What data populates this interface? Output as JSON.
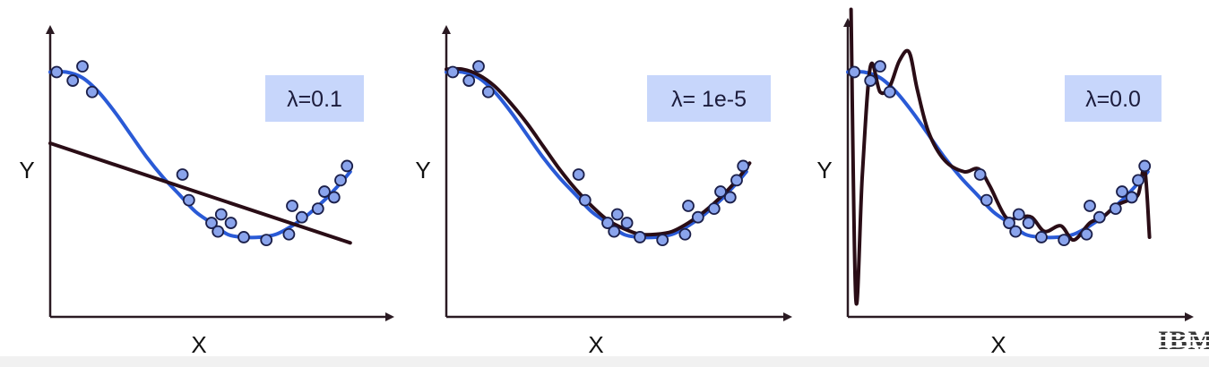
{
  "logo": {
    "text": "IBM"
  },
  "colors": {
    "axis": "#2a1a22",
    "true_curve": "#2a5ad6",
    "fit_curve": "#2a0d16",
    "point_fill": "#8aa4ec",
    "point_stroke": "#1b1f4a",
    "label_box": "#c7d6fb",
    "label_text": "#1c1c3c"
  },
  "chart_data": [
    {
      "type": "scatter",
      "title": "",
      "annotation": "λ=0.1",
      "xlabel": "X",
      "ylabel": "Y",
      "xlim": [
        0,
        10
      ],
      "ylim": [
        0,
        10
      ],
      "series": [
        {
          "kind": "points",
          "points": [
            [
              0.2,
              8.6
            ],
            [
              0.7,
              8.3
            ],
            [
              1.0,
              8.8
            ],
            [
              1.3,
              7.9
            ],
            [
              4.1,
              5.0
            ],
            [
              4.3,
              4.1
            ],
            [
              5.0,
              3.3
            ],
            [
              5.2,
              3.0
            ],
            [
              5.3,
              3.6
            ],
            [
              5.6,
              3.3
            ],
            [
              6.0,
              2.8
            ],
            [
              6.7,
              2.7
            ],
            [
              7.4,
              2.9
            ],
            [
              7.5,
              3.9
            ],
            [
              7.8,
              3.5
            ],
            [
              8.3,
              3.8
            ],
            [
              8.5,
              4.4
            ],
            [
              8.8,
              4.2
            ],
            [
              9.0,
              4.8
            ],
            [
              9.2,
              5.3
            ]
          ]
        },
        {
          "kind": "true_curve",
          "points": [
            [
              0,
              8.6
            ],
            [
              0.5,
              8.6
            ],
            [
              1,
              8.4
            ],
            [
              1.5,
              7.9
            ],
            [
              2,
              7.2
            ],
            [
              2.5,
              6.4
            ],
            [
              3,
              5.6
            ],
            [
              3.5,
              4.9
            ],
            [
              4,
              4.3
            ],
            [
              4.5,
              3.7
            ],
            [
              5,
              3.3
            ],
            [
              5.5,
              2.9
            ],
            [
              6,
              2.8
            ],
            [
              6.5,
              2.8
            ],
            [
              7,
              2.9
            ],
            [
              7.5,
              3.2
            ],
            [
              8,
              3.6
            ],
            [
              8.5,
              4.1
            ],
            [
              9,
              4.7
            ],
            [
              9.3,
              5.1
            ]
          ]
        },
        {
          "kind": "fit_curve",
          "points": [
            [
              0,
              6.1
            ],
            [
              9.3,
              2.6
            ]
          ]
        }
      ]
    },
    {
      "type": "scatter",
      "title": "",
      "annotation": "λ= 1e-5",
      "xlabel": "X",
      "ylabel": "Y",
      "xlim": [
        0,
        10
      ],
      "ylim": [
        0,
        10
      ],
      "series": [
        {
          "kind": "points",
          "points": [
            [
              0.2,
              8.6
            ],
            [
              0.7,
              8.3
            ],
            [
              1.0,
              8.8
            ],
            [
              1.3,
              7.9
            ],
            [
              4.1,
              5.0
            ],
            [
              4.3,
              4.1
            ],
            [
              5.0,
              3.3
            ],
            [
              5.2,
              3.0
            ],
            [
              5.3,
              3.6
            ],
            [
              5.6,
              3.3
            ],
            [
              6.0,
              2.8
            ],
            [
              6.7,
              2.7
            ],
            [
              7.4,
              2.9
            ],
            [
              7.5,
              3.9
            ],
            [
              7.8,
              3.5
            ],
            [
              8.3,
              3.8
            ],
            [
              8.5,
              4.4
            ],
            [
              8.8,
              4.2
            ],
            [
              9.0,
              4.8
            ],
            [
              9.2,
              5.3
            ]
          ]
        },
        {
          "kind": "true_curve",
          "points": [
            [
              0,
              8.6
            ],
            [
              0.5,
              8.6
            ],
            [
              1,
              8.4
            ],
            [
              1.5,
              7.9
            ],
            [
              2,
              7.2
            ],
            [
              2.5,
              6.4
            ],
            [
              3,
              5.6
            ],
            [
              3.5,
              4.9
            ],
            [
              4,
              4.3
            ],
            [
              4.5,
              3.7
            ],
            [
              5,
              3.3
            ],
            [
              5.5,
              2.9
            ],
            [
              6,
              2.8
            ],
            [
              6.5,
              2.8
            ],
            [
              7,
              2.9
            ],
            [
              7.5,
              3.2
            ],
            [
              8,
              3.6
            ],
            [
              8.5,
              4.1
            ],
            [
              9,
              4.7
            ],
            [
              9.3,
              5.1
            ]
          ]
        },
        {
          "kind": "fit_curve",
          "points": [
            [
              0,
              8.7
            ],
            [
              0.5,
              8.7
            ],
            [
              1,
              8.5
            ],
            [
              1.5,
              8.1
            ],
            [
              2,
              7.5
            ],
            [
              2.5,
              6.8
            ],
            [
              3,
              6.0
            ],
            [
              3.5,
              5.2
            ],
            [
              4,
              4.5
            ],
            [
              4.5,
              3.9
            ],
            [
              5,
              3.4
            ],
            [
              5.5,
              3.1
            ],
            [
              6,
              2.9
            ],
            [
              6.5,
              2.9
            ],
            [
              7,
              3.0
            ],
            [
              7.5,
              3.3
            ],
            [
              8,
              3.7
            ],
            [
              8.5,
              4.2
            ],
            [
              9,
              4.8
            ],
            [
              9.4,
              5.4
            ]
          ]
        }
      ]
    },
    {
      "type": "scatter",
      "title": "",
      "annotation": "λ=0.0",
      "xlabel": "X",
      "ylabel": "Y",
      "xlim": [
        0,
        10
      ],
      "ylim": [
        0,
        10
      ],
      "series": [
        {
          "kind": "points",
          "points": [
            [
              0.2,
              8.6
            ],
            [
              0.7,
              8.3
            ],
            [
              1.0,
              8.8
            ],
            [
              1.3,
              7.9
            ],
            [
              4.1,
              5.0
            ],
            [
              4.3,
              4.1
            ],
            [
              5.0,
              3.3
            ],
            [
              5.2,
              3.0
            ],
            [
              5.3,
              3.6
            ],
            [
              5.6,
              3.3
            ],
            [
              6.0,
              2.8
            ],
            [
              6.7,
              2.7
            ],
            [
              7.4,
              2.9
            ],
            [
              7.5,
              3.9
            ],
            [
              7.8,
              3.5
            ],
            [
              8.3,
              3.8
            ],
            [
              8.5,
              4.4
            ],
            [
              8.8,
              4.2
            ],
            [
              9.0,
              4.8
            ],
            [
              9.2,
              5.3
            ]
          ]
        },
        {
          "kind": "true_curve",
          "points": [
            [
              0,
              8.6
            ],
            [
              0.5,
              8.6
            ],
            [
              1,
              8.4
            ],
            [
              1.5,
              7.9
            ],
            [
              2,
              7.2
            ],
            [
              2.5,
              6.4
            ],
            [
              3,
              5.6
            ],
            [
              3.5,
              4.9
            ],
            [
              4,
              4.3
            ],
            [
              4.5,
              3.7
            ],
            [
              5,
              3.3
            ],
            [
              5.5,
              2.9
            ],
            [
              6,
              2.8
            ],
            [
              6.5,
              2.8
            ],
            [
              7,
              2.9
            ],
            [
              7.5,
              3.2
            ],
            [
              8,
              3.6
            ],
            [
              8.5,
              4.1
            ],
            [
              9,
              4.7
            ],
            [
              9.3,
              5.1
            ]
          ]
        },
        {
          "kind": "fit_curve",
          "points": [
            [
              0.1,
              10.8
            ],
            [
              0.25,
              0.6
            ],
            [
              0.45,
              5.0
            ],
            [
              0.7,
              8.8
            ],
            [
              1.0,
              7.9
            ],
            [
              1.3,
              8.1
            ],
            [
              1.6,
              9.0
            ],
            [
              1.9,
              9.3
            ],
            [
              2.15,
              8.0
            ],
            [
              2.5,
              6.5
            ],
            [
              3.0,
              5.5
            ],
            [
              3.6,
              5.1
            ],
            [
              4.05,
              5.2
            ],
            [
              4.4,
              4.6
            ],
            [
              4.9,
              3.5
            ],
            [
              5.3,
              3.5
            ],
            [
              5.7,
              3.5
            ],
            [
              6.1,
              3.0
            ],
            [
              6.6,
              3.2
            ],
            [
              7.0,
              2.7
            ],
            [
              7.5,
              3.3
            ],
            [
              7.9,
              3.5
            ],
            [
              8.3,
              3.9
            ],
            [
              8.7,
              4.1
            ],
            [
              9.0,
              4.3
            ],
            [
              9.2,
              5.2
            ],
            [
              9.35,
              2.8
            ]
          ]
        }
      ]
    }
  ]
}
